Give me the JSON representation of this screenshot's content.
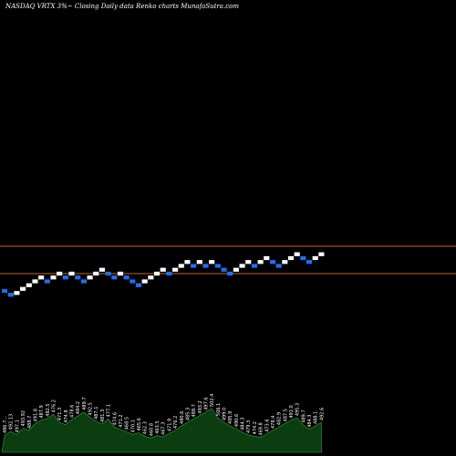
{
  "chart_data": {
    "type": "renko",
    "title": "NASDAQ VRTX  3%~  Closing Daily data Renko  charts MunafaSutra.com",
    "colors": {
      "background": "#000000",
      "up_brick": "#ffffff",
      "down_brick": "#1e6ff0",
      "level_line": "#c8641e",
      "volume_fill": "#0b3d10",
      "volume_edge": "#2fa83a"
    },
    "y_min": 300,
    "y_max": 2300,
    "bricks": [
      {
        "d": -1,
        "y": 1024
      },
      {
        "d": -1,
        "y": 1007
      },
      {
        "d": 1,
        "y": 1015
      },
      {
        "d": 1,
        "y": 1033
      },
      {
        "d": 1,
        "y": 1049
      },
      {
        "d": 1,
        "y": 1066
      },
      {
        "d": 1,
        "y": 1083
      },
      {
        "d": -1,
        "y": 1066
      },
      {
        "d": 1,
        "y": 1083
      },
      {
        "d": 1,
        "y": 1100
      },
      {
        "d": -1,
        "y": 1083
      },
      {
        "d": 1,
        "y": 1100
      },
      {
        "d": -1,
        "y": 1083
      },
      {
        "d": -1,
        "y": 1066
      },
      {
        "d": 1,
        "y": 1083
      },
      {
        "d": 1,
        "y": 1100
      },
      {
        "d": 1,
        "y": 1117
      },
      {
        "d": -1,
        "y": 1100
      },
      {
        "d": -1,
        "y": 1083
      },
      {
        "d": 1,
        "y": 1100
      },
      {
        "d": -1,
        "y": 1083
      },
      {
        "d": -1,
        "y": 1066
      },
      {
        "d": -1,
        "y": 1049
      },
      {
        "d": 1,
        "y": 1066
      },
      {
        "d": 1,
        "y": 1083
      },
      {
        "d": 1,
        "y": 1100
      },
      {
        "d": 1,
        "y": 1117
      },
      {
        "d": -1,
        "y": 1100
      },
      {
        "d": 1,
        "y": 1117
      },
      {
        "d": 1,
        "y": 1134
      },
      {
        "d": 1,
        "y": 1151
      },
      {
        "d": -1,
        "y": 1134
      },
      {
        "d": 1,
        "y": 1151
      },
      {
        "d": -1,
        "y": 1134
      },
      {
        "d": 1,
        "y": 1151
      },
      {
        "d": -1,
        "y": 1134
      },
      {
        "d": -1,
        "y": 1117
      },
      {
        "d": -1,
        "y": 1100
      },
      {
        "d": 1,
        "y": 1117
      },
      {
        "d": 1,
        "y": 1134
      },
      {
        "d": 1,
        "y": 1151
      },
      {
        "d": -1,
        "y": 1134
      },
      {
        "d": 1,
        "y": 1151
      },
      {
        "d": 1,
        "y": 1168
      },
      {
        "d": -1,
        "y": 1151
      },
      {
        "d": -1,
        "y": 1134
      },
      {
        "d": 1,
        "y": 1151
      },
      {
        "d": 1,
        "y": 1168
      },
      {
        "d": 1,
        "y": 1185
      },
      {
        "d": -1,
        "y": 1168
      },
      {
        "d": -1,
        "y": 1151
      },
      {
        "d": 1,
        "y": 1168
      },
      {
        "d": 1,
        "y": 1185
      }
    ],
    "levels": [
      1220,
      1100
    ],
    "volume_labels": [
      "486.7…",
      "492.13",
      "497.1",
      "493.92",
      "488.7",
      "491.8",
      "487.9",
      "482.5",
      "476.2",
      "471.3",
      "474.8",
      "478.6",
      "484.2",
      "489.7",
      "492.5",
      "487.1",
      "481.3",
      "477.1",
      "474.6",
      "471.2",
      "468.5",
      "470.1",
      "465.6",
      "462.3",
      "460.8",
      "463.5",
      "467.3",
      "471.9",
      "476.2",
      "480.6",
      "485.3",
      "488.7",
      "493.2",
      "497.6",
      "502.4",
      "506.1",
      "499.0",
      "495.9",
      "490.6",
      "484.3",
      "479.3",
      "474.2",
      "469.8",
      "473.6",
      "478.4",
      "482.9",
      "487.5",
      "491.0",
      "495.3",
      "489.7",
      "484.3",
      "488.1",
      "492.6"
    ],
    "volumes": [
      30,
      36,
      31,
      42,
      38,
      50,
      56,
      59,
      66,
      52,
      48,
      57,
      63,
      70,
      61,
      54,
      49,
      58,
      44,
      40,
      36,
      31,
      34,
      28,
      25,
      29,
      27,
      33,
      38,
      46,
      52,
      58,
      64,
      70,
      76,
      60,
      52,
      46,
      41,
      35,
      30,
      28,
      26,
      32,
      38,
      44,
      50,
      56,
      60,
      48,
      40,
      46,
      52
    ]
  }
}
